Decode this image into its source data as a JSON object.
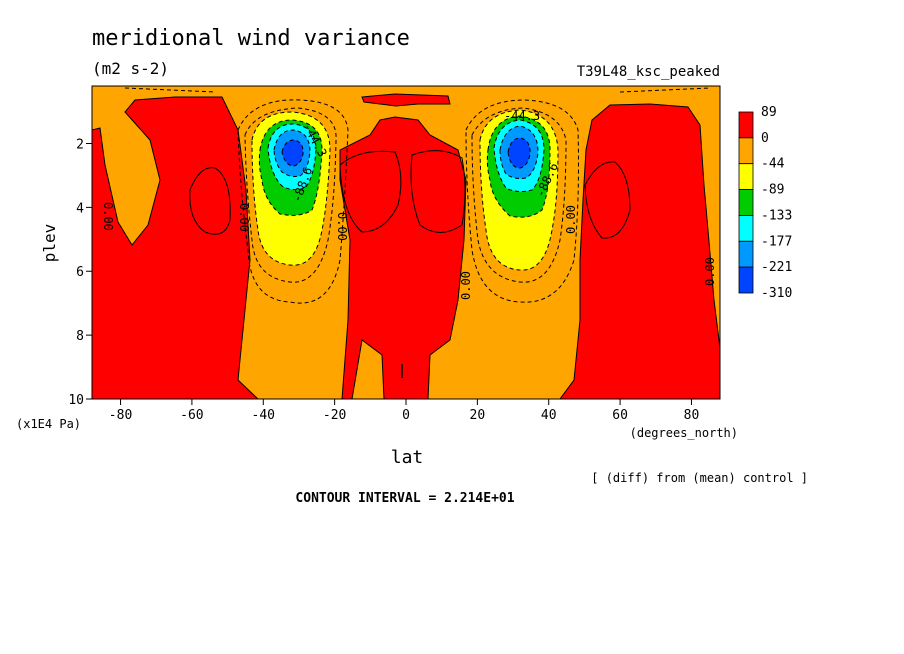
{
  "chart_data": {
    "type": "contour",
    "title": "meridional wind variance",
    "subtitle": "(m2 s-2)",
    "experiment_label": "T39L48_ksc_peaked",
    "xlabel": "lat",
    "xunits": "(degrees_north)",
    "ylabel": "plev",
    "yunits": "(x1E4 Pa)",
    "xlim": [
      -88,
      88
    ],
    "ylim": [
      10,
      0.2
    ],
    "x_ticks": [
      -80,
      -60,
      -40,
      -20,
      0,
      20,
      40,
      60,
      80
    ],
    "y_ticks": [
      2,
      4,
      6,
      8,
      10
    ],
    "colorbar": {
      "labels": [
        "89",
        "0",
        "-44",
        "-89",
        "-133",
        "-177",
        "-221",
        "-310"
      ],
      "colors": [
        "#ff0000",
        "#ffa500",
        "#ffff00",
        "#00cc00",
        "#00ffff",
        "#0099ff",
        "#0044ff"
      ]
    },
    "contour_labels": [
      "0.00",
      "0.00",
      "0.00",
      "0.00",
      "0.00",
      "0.00",
      "-44.3",
      "-44.3",
      "-88.6",
      "-88.6"
    ],
    "note": "[ (diff) from (mean) control ]",
    "contour_interval": "CONTOUR INTERVAL = 2.214E+01"
  }
}
